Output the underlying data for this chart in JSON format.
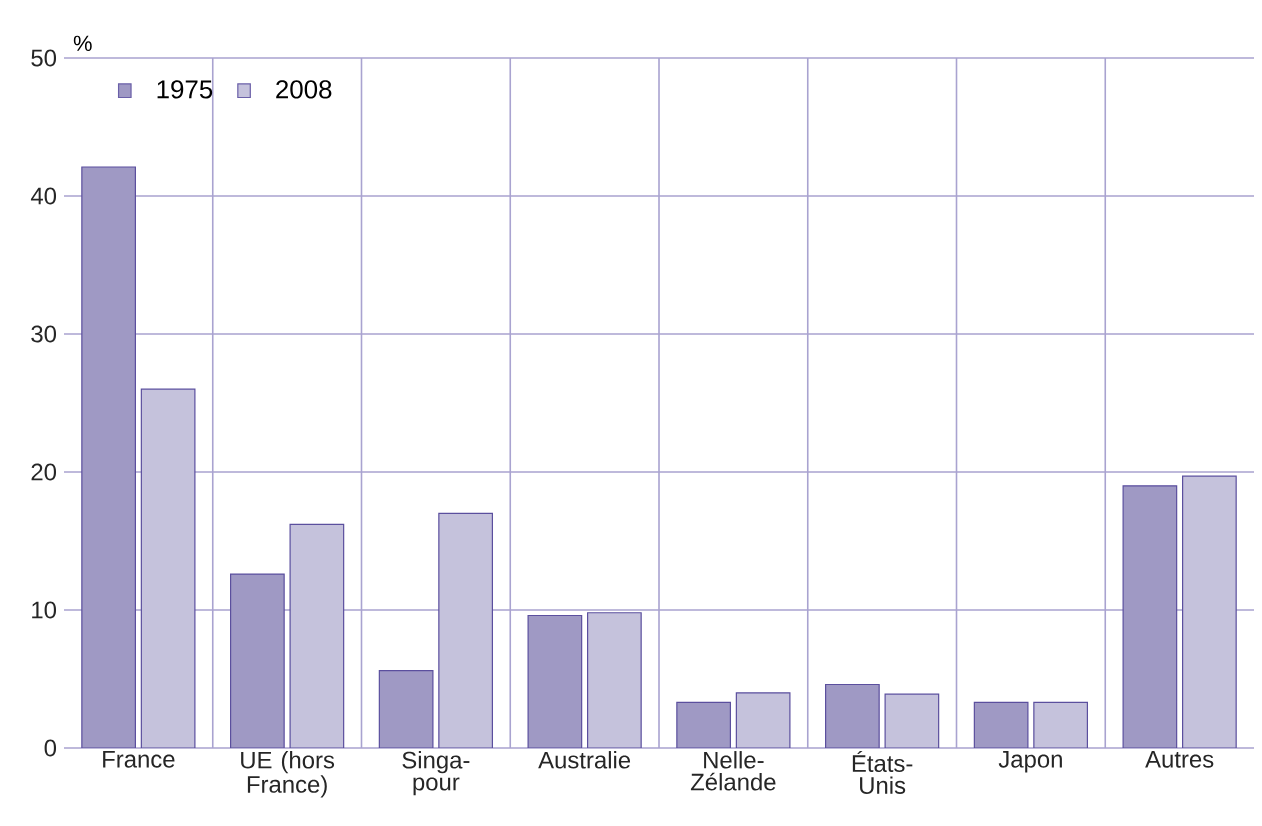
{
  "chart_data": {
    "type": "bar",
    "ylabel": "%",
    "categories": [
      "France",
      "UE (hors France)",
      "Singa-pour",
      "Australie",
      "Nelle-Zélande",
      "États-Unis",
      "Japon",
      "Autres"
    ],
    "series": [
      {
        "name": "1975",
        "color": "#9f99c4",
        "values": [
          42.1,
          12.6,
          5.6,
          9.6,
          3.3,
          4.6,
          3.3,
          19.0
        ]
      },
      {
        "name": "2008",
        "color": "#c5c2dc",
        "values": [
          26.0,
          16.2,
          17.0,
          9.8,
          4.0,
          3.9,
          3.3,
          19.7
        ]
      }
    ],
    "ylim": [
      0,
      50
    ],
    "yticks": [
      0,
      10,
      20,
      30,
      40,
      50
    ],
    "grid": true,
    "legend": "top left"
  }
}
